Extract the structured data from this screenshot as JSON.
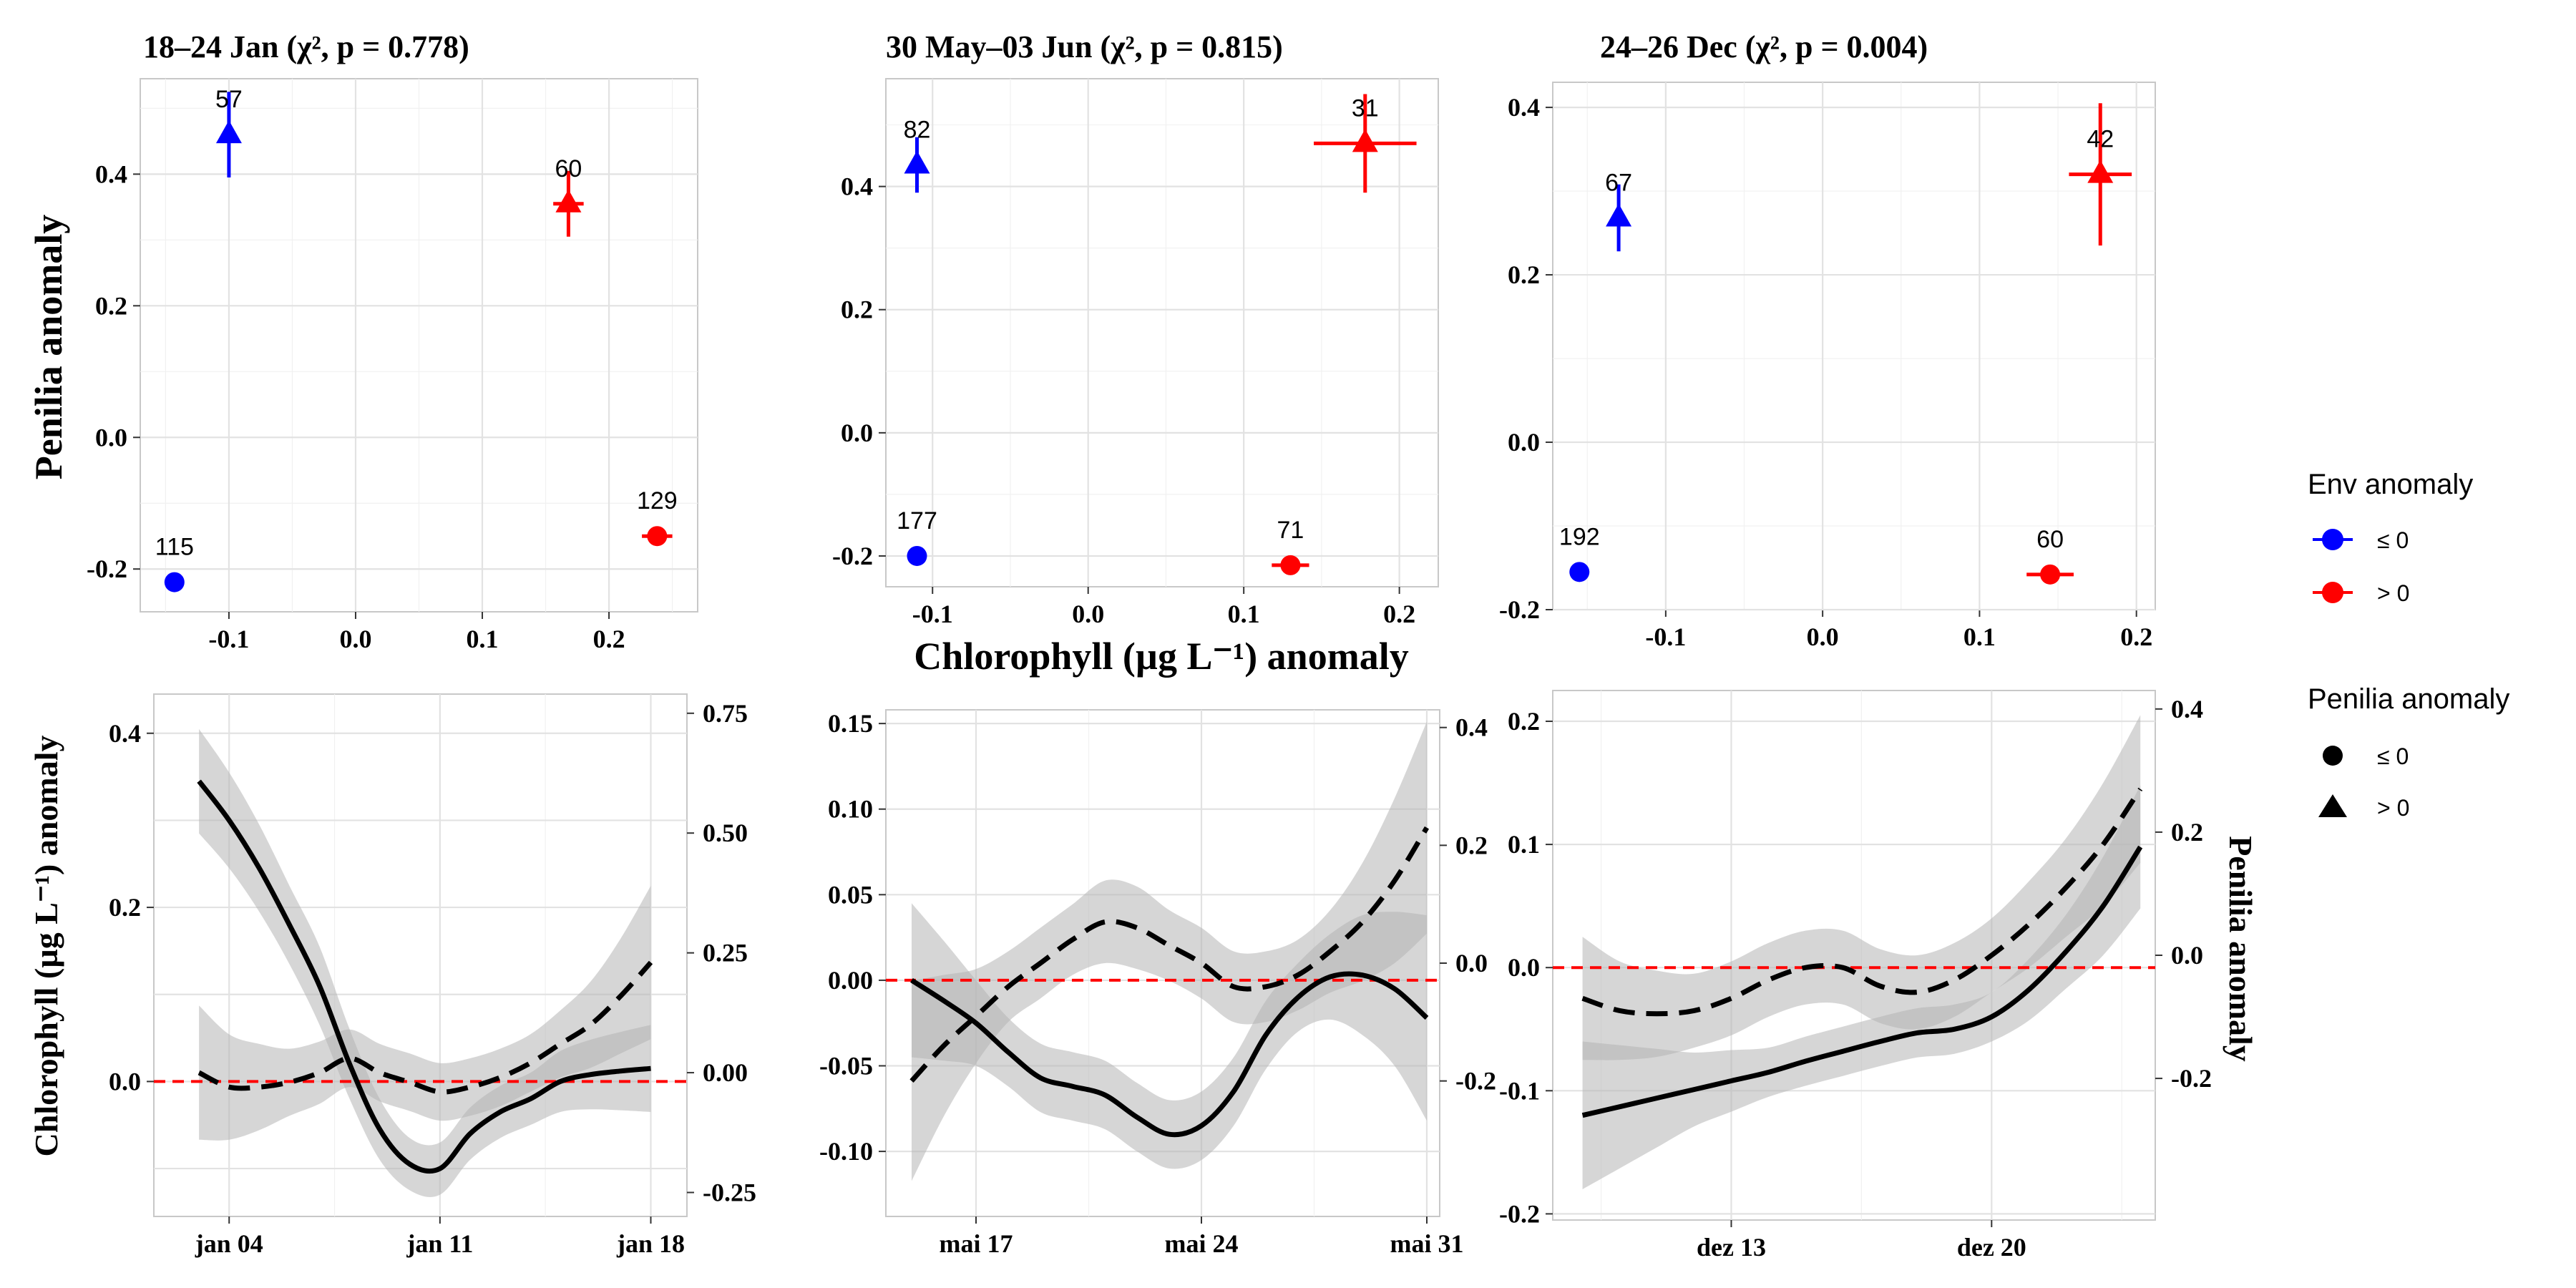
{
  "chart_data": [
    {
      "type": "scatter",
      "title": "18–24 Jan (χ², p = 0.778)",
      "ylabel": "Penilia anomaly",
      "xlim": [
        -0.17,
        0.27
      ],
      "ylim": [
        -0.265,
        0.545
      ],
      "xticks": [
        -0.1,
        0.0,
        0.1,
        0.2
      ],
      "xtick_labels": [
        "-0.1",
        "0.0",
        "0.1",
        "0.2"
      ],
      "yticks": [
        -0.2,
        0.0,
        0.2,
        0.4
      ],
      "ytick_labels": [
        "-0.2",
        "0.0",
        "0.2",
        "0.4"
      ],
      "points": [
        {
          "x": -0.1,
          "y": 0.46,
          "env": "<= 0",
          "shape": "triangle",
          "n": "57",
          "xerr": 0.0,
          "yerr": 0.065
        },
        {
          "x": 0.168,
          "y": 0.355,
          "env": "> 0",
          "shape": "triangle",
          "n": "60",
          "xerr": 0.012,
          "yerr": 0.05
        },
        {
          "x": -0.143,
          "y": -0.22,
          "env": "<= 0",
          "shape": "circle",
          "n": "115",
          "xerr": 0.0,
          "yerr": 0.0
        },
        {
          "x": 0.238,
          "y": -0.15,
          "env": "> 0",
          "shape": "circle",
          "n": "129",
          "xerr": 0.012,
          "yerr": 0.0
        }
      ]
    },
    {
      "type": "scatter",
      "title": "30 May–03 Jun (χ², p = 0.815)",
      "xlabel": "Chlorophyll (µg L⁻¹) anomaly",
      "xlim": [
        -0.13,
        0.225
      ],
      "ylim": [
        -0.25,
        0.575
      ],
      "xticks": [
        -0.1,
        0.0,
        0.1,
        0.2
      ],
      "xtick_labels": [
        "-0.1",
        "0.0",
        "0.1",
        "0.2"
      ],
      "yticks": [
        -0.2,
        0.0,
        0.2,
        0.4
      ],
      "ytick_labels": [
        "-0.2",
        "0.0",
        "0.2",
        "0.4"
      ],
      "points": [
        {
          "x": -0.11,
          "y": 0.435,
          "env": "<= 0",
          "shape": "triangle",
          "n": "82",
          "xerr": 0.0,
          "yerr": 0.045
        },
        {
          "x": 0.178,
          "y": 0.47,
          "env": "> 0",
          "shape": "triangle",
          "n": "31",
          "xerr": 0.033,
          "yerr": 0.08
        },
        {
          "x": -0.11,
          "y": -0.2,
          "env": "<= 0",
          "shape": "circle",
          "n": "177",
          "xerr": 0.0,
          "yerr": 0.0
        },
        {
          "x": 0.13,
          "y": -0.215,
          "env": "> 0",
          "shape": "circle",
          "n": "71",
          "xerr": 0.012,
          "yerr": 0.0
        }
      ]
    },
    {
      "type": "scatter",
      "title": "24–26 Dec (χ², p = 0.004)",
      "xlim": [
        -0.172,
        0.212
      ],
      "ylim": [
        -0.2,
        0.43
      ],
      "xticks": [
        -0.1,
        0.0,
        0.1,
        0.2
      ],
      "xtick_labels": [
        "-0.1",
        "0.0",
        "0.1",
        "0.2"
      ],
      "yticks": [
        -0.2,
        0.0,
        0.2,
        0.4
      ],
      "ytick_labels": [
        "-0.2",
        "0.0",
        "0.2",
        "0.4"
      ],
      "points": [
        {
          "x": -0.13,
          "y": 0.268,
          "env": "<= 0",
          "shape": "triangle",
          "n": "67",
          "xerr": 0.0,
          "yerr": 0.04
        },
        {
          "x": 0.177,
          "y": 0.32,
          "env": "> 0",
          "shape": "triangle",
          "n": "42",
          "xerr": 0.02,
          "yerr": 0.085
        },
        {
          "x": -0.155,
          "y": -0.155,
          "env": "<= 0",
          "shape": "circle",
          "n": "192",
          "xerr": 0.0,
          "yerr": 0.0
        },
        {
          "x": 0.145,
          "y": -0.158,
          "env": "> 0",
          "shape": "circle",
          "n": "60",
          "xerr": 0.015,
          "yerr": 0.0
        }
      ]
    },
    {
      "type": "line",
      "ylabel_left": "Chlorophyll (µg L⁻¹) anomaly",
      "x_unit": "day",
      "xlim": [
        1.5,
        19.2
      ],
      "ylim_left": [
        -0.155,
        0.445
      ],
      "ylim_right": [
        -0.3,
        0.79
      ],
      "xticks": [
        4,
        11,
        18
      ],
      "xtick_labels": [
        "jan 04",
        "jan 11",
        "jan 18"
      ],
      "yticks_left": [
        -0.1,
        0.0,
        0.1,
        0.2,
        0.3,
        0.4
      ],
      "yticks_left_labels": [
        "",
        "0.0",
        "",
        "0.2",
        "",
        "0.4"
      ],
      "yticks_right": [
        -0.25,
        0.0,
        0.25,
        0.5,
        0.75
      ],
      "yticks_right_labels": [
        "-0.25",
        "0.00",
        "0.25",
        "0.50",
        "0.75"
      ],
      "series": [
        {
          "style": "solid",
          "axis": "left",
          "x": [
            3,
            4,
            5,
            6,
            7,
            8,
            9,
            10,
            11,
            12,
            13,
            14,
            15,
            16,
            17,
            18
          ],
          "y": [
            0.345,
            0.3,
            0.245,
            0.18,
            0.11,
            0.02,
            -0.055,
            -0.095,
            -0.1,
            -0.06,
            -0.035,
            -0.02,
            0.0,
            0.008,
            0.012,
            0.015
          ],
          "band": [
            0.06,
            0.055,
            0.05,
            0.045,
            0.045,
            0.04,
            0.035,
            0.03,
            0.03,
            0.03,
            0.03,
            0.03,
            0.035,
            0.04,
            0.045,
            0.05
          ]
        },
        {
          "style": "dashed",
          "axis": "right",
          "x": [
            3,
            4,
            5,
            6,
            7,
            8,
            9,
            10,
            11,
            12,
            13,
            14,
            15,
            16,
            17,
            18
          ],
          "y": [
            0.0,
            -0.03,
            -0.03,
            -0.02,
            0.0,
            0.03,
            0.0,
            -0.02,
            -0.04,
            -0.03,
            -0.01,
            0.02,
            0.06,
            0.1,
            0.16,
            0.23
          ],
          "band": [
            0.14,
            0.11,
            0.09,
            0.07,
            0.065,
            0.06,
            0.06,
            0.06,
            0.06,
            0.06,
            0.06,
            0.06,
            0.07,
            0.09,
            0.12,
            0.16
          ]
        }
      ]
    },
    {
      "type": "line",
      "x_unit": "day",
      "xlim": [
        14.2,
        31.4
      ],
      "ylim_left": [
        -0.138,
        0.158
      ],
      "ylim_right": [
        -0.43,
        0.43
      ],
      "xticks": [
        17,
        24,
        31
      ],
      "xtick_labels": [
        "mai 17",
        "mai 24",
        "mai 31"
      ],
      "yticks_left": [
        -0.1,
        -0.05,
        0.0,
        0.05,
        0.1,
        0.15
      ],
      "yticks_left_labels": [
        "-0.10",
        "-0.05",
        "0.00",
        "0.05",
        "0.10",
        "0.15"
      ],
      "yticks_right": [
        -0.2,
        0.0,
        0.2,
        0.4
      ],
      "yticks_right_labels": [
        "-0.2",
        "0.0",
        "0.2",
        "0.4"
      ],
      "series": [
        {
          "style": "solid",
          "axis": "left",
          "x": [
            15,
            16,
            17,
            18,
            19,
            20,
            21,
            22,
            23,
            24,
            25,
            26,
            27,
            28,
            29,
            30,
            31
          ],
          "y": [
            0.0,
            -0.012,
            -0.025,
            -0.042,
            -0.057,
            -0.062,
            -0.067,
            -0.08,
            -0.09,
            -0.085,
            -0.065,
            -0.032,
            -0.01,
            0.002,
            0.003,
            -0.005,
            -0.022
          ],
          "band": [
            0.045,
            0.035,
            0.025,
            0.02,
            0.02,
            0.02,
            0.02,
            0.02,
            0.02,
            0.02,
            0.02,
            0.02,
            0.02,
            0.025,
            0.035,
            0.045,
            0.06
          ]
        },
        {
          "style": "dashed",
          "axis": "right",
          "x": [
            15,
            16,
            17,
            18,
            19,
            20,
            21,
            22,
            23,
            24,
            25,
            26,
            27,
            28,
            29,
            30,
            31
          ],
          "y": [
            -0.2,
            -0.14,
            -0.09,
            -0.04,
            0.0,
            0.04,
            0.07,
            0.06,
            0.03,
            0.0,
            -0.04,
            -0.04,
            -0.02,
            0.02,
            0.07,
            0.14,
            0.23
          ],
          "band": [
            0.17,
            0.12,
            0.08,
            0.06,
            0.06,
            0.06,
            0.07,
            0.07,
            0.06,
            0.06,
            0.06,
            0.06,
            0.06,
            0.07,
            0.1,
            0.14,
            0.18
          ]
        }
      ]
    },
    {
      "type": "line",
      "ylabel_right": "Penilia anomaly",
      "x_unit": "day",
      "xlim": [
        8.2,
        24.4
      ],
      "ylim_left": [
        -0.205,
        0.225
      ],
      "ylim_right": [
        -0.43,
        0.43
      ],
      "xticks": [
        13,
        20
      ],
      "xtick_labels": [
        "dez 13",
        "dez 20"
      ],
      "yticks_left": [
        -0.2,
        -0.1,
        0.0,
        0.1,
        0.2
      ],
      "yticks_left_labels": [
        "-0.2",
        "-0.1",
        "0.0",
        "0.1",
        "0.2"
      ],
      "yticks_right": [
        -0.2,
        0.0,
        0.2,
        0.4
      ],
      "yticks_right_labels": [
        "-0.2",
        "0.0",
        "0.2",
        "0.4"
      ],
      "series": [
        {
          "style": "solid",
          "axis": "left",
          "x": [
            9,
            10,
            11,
            12,
            13,
            14,
            15,
            16,
            17,
            18,
            19,
            20,
            21,
            22,
            23,
            24
          ],
          "y": [
            -0.12,
            -0.113,
            -0.106,
            -0.099,
            -0.092,
            -0.085,
            -0.076,
            -0.068,
            -0.06,
            -0.053,
            -0.05,
            -0.04,
            -0.018,
            0.013,
            0.05,
            0.098
          ],
          "band": [
            0.06,
            0.05,
            0.04,
            0.03,
            0.025,
            0.02,
            0.02,
            0.02,
            0.02,
            0.02,
            0.02,
            0.02,
            0.025,
            0.03,
            0.04,
            0.05
          ]
        },
        {
          "style": "dashed",
          "axis": "right",
          "x": [
            9,
            10,
            11,
            12,
            13,
            14,
            15,
            16,
            17,
            18,
            19,
            20,
            21,
            22,
            23,
            24
          ],
          "y": [
            -0.07,
            -0.09,
            -0.095,
            -0.09,
            -0.07,
            -0.04,
            -0.02,
            -0.02,
            -0.05,
            -0.06,
            -0.04,
            0.0,
            0.05,
            0.11,
            0.18,
            0.27
          ],
          "band": [
            0.1,
            0.08,
            0.07,
            0.06,
            0.06,
            0.06,
            0.06,
            0.06,
            0.06,
            0.06,
            0.06,
            0.06,
            0.07,
            0.08,
            0.1,
            0.12
          ]
        }
      ]
    }
  ],
  "legend": {
    "env_title": "Env anomaly",
    "env_items": [
      {
        "label": "≤ 0",
        "color": "#0000ff"
      },
      {
        "label": "> 0",
        "color": "#ff0000"
      }
    ],
    "pen_title": "Penilia anomaly",
    "pen_items": [
      {
        "label": "≤ 0",
        "shape": "circle"
      },
      {
        "label": "> 0",
        "shape": "triangle"
      }
    ]
  },
  "colors": {
    "env_low": "#0000ff",
    "env_high": "#ff0000",
    "line": "#000000",
    "band": "#b4b4b4",
    "zero_line": "#ff0000"
  }
}
